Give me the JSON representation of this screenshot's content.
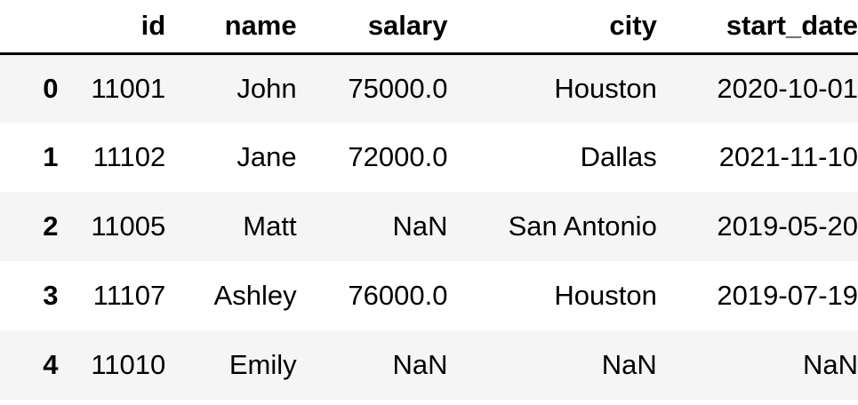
{
  "table": {
    "columns": [
      "id",
      "name",
      "salary",
      "city",
      "start_date"
    ],
    "rows": [
      {
        "index": "0",
        "cells": [
          "11001",
          "John",
          "75000.0",
          "Houston",
          "2020-10-01"
        ]
      },
      {
        "index": "1",
        "cells": [
          "11102",
          "Jane",
          "72000.0",
          "Dallas",
          "2021-11-10"
        ]
      },
      {
        "index": "2",
        "cells": [
          "11005",
          "Matt",
          "NaN",
          "San Antonio",
          "2019-05-20"
        ]
      },
      {
        "index": "3",
        "cells": [
          "11107",
          "Ashley",
          "76000.0",
          "Houston",
          "2019-07-19"
        ]
      },
      {
        "index": "4",
        "cells": [
          "11010",
          "Emily",
          "NaN",
          "NaN",
          "NaN"
        ]
      }
    ]
  },
  "colors": {
    "stripe": "#f5f5f5",
    "background": "#ffffff",
    "header_rule": "#000000"
  }
}
